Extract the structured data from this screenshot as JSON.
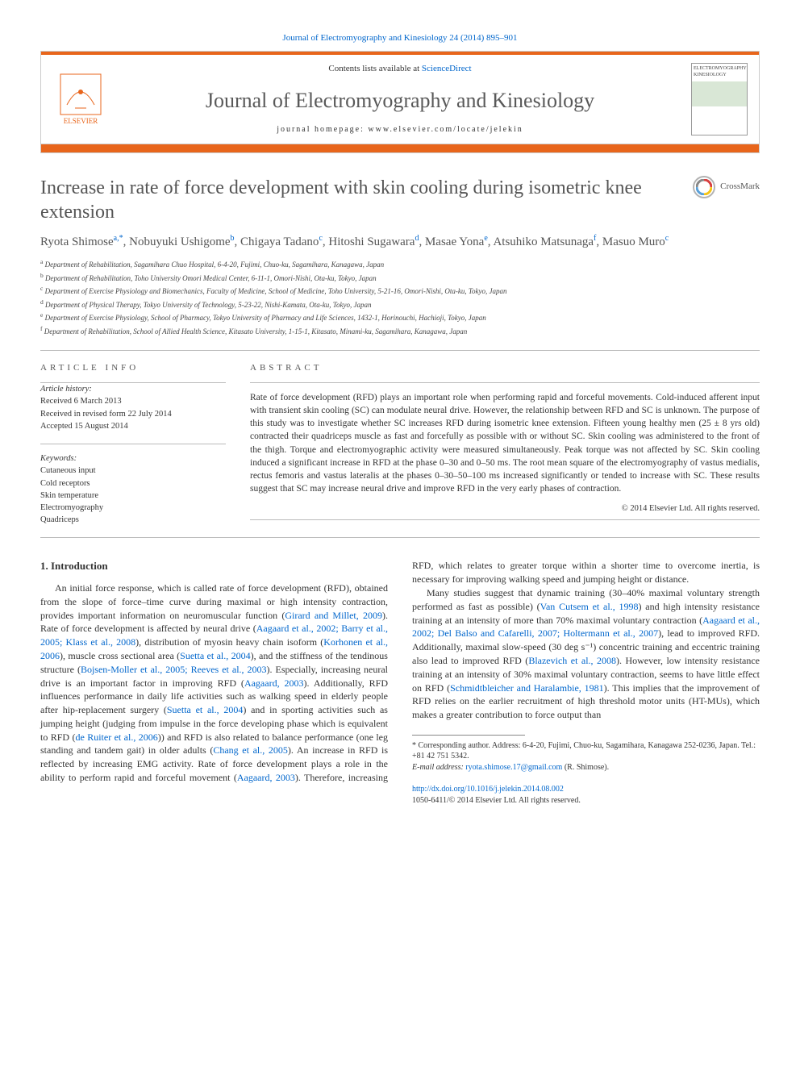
{
  "topCitation": {
    "journalLink": "Journal of Electromyography and Kinesiology 24 (2014) 895–901"
  },
  "banner": {
    "publisher": "ELSEVIER",
    "contentsPrefix": "Contents lists available at ",
    "contentsLink": "ScienceDirect",
    "journalTitle": "Journal of Electromyography and Kinesiology",
    "homepagePrefix": "journal homepage: ",
    "homepage": "www.elsevier.com/locate/jelekin",
    "coverText": "ELECTROMYOGRAPHY KINESIOLOGY"
  },
  "crossmark": "CrossMark",
  "article": {
    "title": "Increase in rate of force development with skin cooling during isometric knee extension",
    "authorsHtmlParts": [
      {
        "name": "Ryota Shimose",
        "sup": "a,*"
      },
      {
        "name": "Nobuyuki Ushigome",
        "sup": "b"
      },
      {
        "name": "Chigaya Tadano",
        "sup": "c"
      },
      {
        "name": "Hitoshi Sugawara",
        "sup": "d"
      },
      {
        "name": "Masae Yona",
        "sup": "e"
      },
      {
        "name": "Atsuhiko Matsunaga",
        "sup": "f"
      },
      {
        "name": "Masuo Muro",
        "sup": "c"
      }
    ],
    "affiliations": [
      {
        "key": "a",
        "text": "Department of Rehabilitation, Sagamihara Chuo Hospital, 6-4-20, Fujimi, Chuo-ku, Sagamihara, Kanagawa, Japan"
      },
      {
        "key": "b",
        "text": "Department of Rehabilitation, Toho University Omori Medical Center, 6-11-1, Omori-Nishi, Ota-ku, Tokyo, Japan"
      },
      {
        "key": "c",
        "text": "Department of Exercise Physiology and Biomechanics, Faculty of Medicine, School of Medicine, Toho University, 5-21-16, Omori-Nishi, Ota-ku, Tokyo, Japan"
      },
      {
        "key": "d",
        "text": "Department of Physical Therapy, Tokyo University of Technology, 5-23-22, Nishi-Kamata, Ota-ku, Tokyo, Japan"
      },
      {
        "key": "e",
        "text": "Department of Exercise Physiology, School of Pharmacy, Tokyo University of Pharmacy and Life Sciences, 1432-1, Horinouchi, Hachioji, Tokyo, Japan"
      },
      {
        "key": "f",
        "text": "Department of Rehabilitation, School of Allied Health Science, Kitasato University, 1-15-1, Kitasato, Minami-ku, Sagamihara, Kanagawa, Japan"
      }
    ]
  },
  "articleInfo": {
    "heading": "ARTICLE INFO",
    "historyLabel": "Article history:",
    "history": [
      "Received 6 March 2013",
      "Received in revised form 22 July 2014",
      "Accepted 15 August 2014"
    ],
    "keywordsLabel": "Keywords:",
    "keywords": [
      "Cutaneous input",
      "Cold receptors",
      "Skin temperature",
      "Electromyography",
      "Quadriceps"
    ]
  },
  "abstract": {
    "heading": "ABSTRACT",
    "text": "Rate of force development (RFD) plays an important role when performing rapid and forceful movements. Cold-induced afferent input with transient skin cooling (SC) can modulate neural drive. However, the relationship between RFD and SC is unknown. The purpose of this study was to investigate whether SC increases RFD during isometric knee extension. Fifteen young healthy men (25 ± 8 yrs old) contracted their quadriceps muscle as fast and forcefully as possible with or without SC. Skin cooling was administered to the front of the thigh. Torque and electromyographic activity were measured simultaneously. Peak torque was not affected by SC. Skin cooling induced a significant increase in RFD at the phase 0–30 and 0–50 ms. The root mean square of the electromyography of vastus medialis, rectus femoris and vastus lateralis at the phases 0–30–50–100 ms increased significantly or tended to increase with SC. These results suggest that SC may increase neural drive and improve RFD in the very early phases of contraction.",
    "copyright": "© 2014 Elsevier Ltd. All rights reserved."
  },
  "section1": {
    "heading": "1. Introduction",
    "p1a": "An initial force response, which is called rate of force development (RFD), obtained from the slope of force–time curve during maximal or high intensity contraction, provides important information on neuromuscular function (",
    "p1link1": "Girard and Millet, 2009",
    "p1b": "). Rate of force development is affected by neural drive (",
    "p1link2": "Aagaard et al., 2002; Barry et al., 2005; Klass et al., 2008",
    "p1c": "), distribution of myosin heavy chain isoform (",
    "p1link3": "Korhonen et al., 2006",
    "p1d": "), muscle cross sectional area (",
    "p1link4": "Suetta et al., 2004",
    "p1e": "), and the stiffness of the tendinous structure (",
    "p1link5": "Bojsen-Moller et al., 2005; Reeves et al., 2003",
    "p1f": "). Especially, increasing neural drive is an important factor in improving RFD (",
    "p1link6": "Aagaard, 2003",
    "p1g": "). Additionally, RFD influences performance in daily life activities such as walking speed in elderly people after hip-replacement surgery (",
    "p1link7": "Suetta et al., 2004",
    "p1h": ") and in sporting activities such as jumping height (judging from impulse in the force developing phase which is equivalent to RFD (",
    "p1link8": "de Ruiter et al., 2006",
    "p1i": ")) ",
    "p1j": "and RFD is also related to balance performance (one leg standing and tandem gait) in older adults (",
    "p1link9": "Chang et al., 2005",
    "p1k": "). An increase in RFD is reflected by increasing EMG activity. Rate of force development plays a role in the ability to perform rapid and forceful movement (",
    "p1link10": "Aagaard, 2003",
    "p1l": "). Therefore, increasing RFD, which relates to greater torque within a shorter time to overcome inertia, is necessary for improving walking speed and jumping height or distance.",
    "p2a": "Many studies suggest that dynamic training (30–40% maximal voluntary strength performed as fast as possible) (",
    "p2link1": "Van Cutsem et al., 1998",
    "p2b": ") and high intensity resistance training at an intensity of more than 70% maximal voluntary contraction (",
    "p2link2": "Aagaard et al., 2002; Del Balso and Cafarelli, 2007; Holtermann et al., 2007",
    "p2c": "), lead to improved RFD. Additionally, maximal slow-speed (30 deg s⁻¹) concentric training and eccentric training also lead to improved RFD (",
    "p2link3": "Blazevich et al., 2008",
    "p2d": "). However, low intensity resistance training at an intensity of 30% maximal voluntary contraction, seems to have little effect on RFD (",
    "p2link4": "Schmidtbleicher and Haralambie, 1981",
    "p2e": "). This implies that the improvement of RFD relies on the earlier recruitment of high threshold motor units (HT-MUs), which makes a greater contribution to force output than"
  },
  "footnote": {
    "corresponding": "* Corresponding author. Address: 6-4-20, Fujimi, Chuo-ku, Sagamihara, Kanagawa 252-0236, Japan. Tel.: +81 42 751 5342.",
    "emailLabel": "E-mail address: ",
    "email": "ryota.shimose.17@gmail.com",
    "emailSuffix": " (R. Shimose)."
  },
  "bottom": {
    "doi": "http://dx.doi.org/10.1016/j.jelekin.2014.08.002",
    "issn": "1050-6411/© 2014 Elsevier Ltd. All rights reserved."
  },
  "colors": {
    "accent": "#e8651b",
    "link": "#0066cc",
    "text": "#333333",
    "muted": "#595959"
  }
}
